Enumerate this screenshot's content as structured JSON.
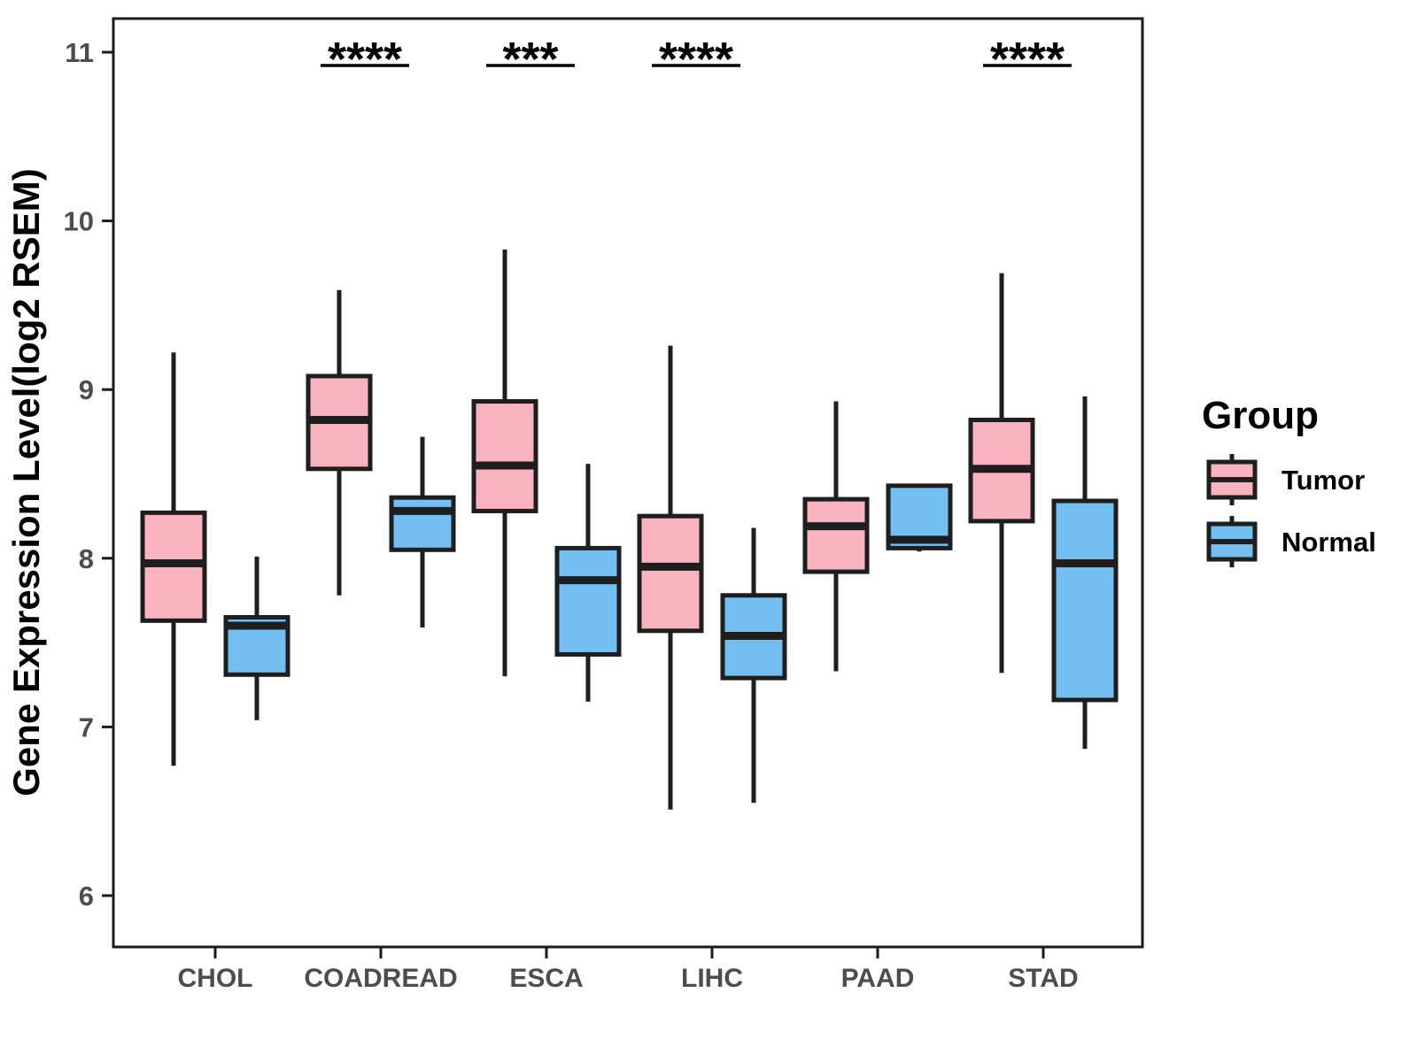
{
  "chart_data": {
    "type": "boxplot",
    "title": "",
    "xlabel": "",
    "ylabel": "Gene Expression Level(log2 RSEM)",
    "ylim": [
      5.7,
      11.2
    ],
    "yticks": [
      6,
      7,
      8,
      9,
      10,
      11
    ],
    "categories": [
      "CHOL",
      "COADREAD",
      "ESCA",
      "LIHC",
      "PAAD",
      "STAD"
    ],
    "grid": false,
    "legend_position": "right",
    "legend": {
      "title": "Group",
      "entries": [
        {
          "label": "Tumor",
          "color": "#f9b3bf"
        },
        {
          "label": "Normal",
          "color": "#73bff2"
        }
      ]
    },
    "colors": {
      "tumor_fill": "#f9b3bf",
      "normal_fill": "#73bff2",
      "box_stroke": "#1e1e1e",
      "axis_stroke": "#1a1a1a",
      "tick_label": "#4d4d4d",
      "background": "#ffffff"
    },
    "series": [
      {
        "name": "Tumor",
        "color": "#f9b3bf",
        "boxes": [
          {
            "category": "CHOL",
            "whisker_low": 6.77,
            "q1": 7.63,
            "median": 7.97,
            "q3": 8.27,
            "whisker_high": 9.22
          },
          {
            "category": "COADREAD",
            "whisker_low": 7.78,
            "q1": 8.53,
            "median": 8.82,
            "q3": 9.08,
            "whisker_high": 9.59
          },
          {
            "category": "ESCA",
            "whisker_low": 7.3,
            "q1": 8.28,
            "median": 8.55,
            "q3": 8.93,
            "whisker_high": 9.83
          },
          {
            "category": "LIHC",
            "whisker_low": 6.51,
            "q1": 7.57,
            "median": 7.95,
            "q3": 8.25,
            "whisker_high": 9.26
          },
          {
            "category": "PAAD",
            "whisker_low": 7.33,
            "q1": 7.92,
            "median": 8.19,
            "q3": 8.35,
            "whisker_high": 8.93
          },
          {
            "category": "STAD",
            "whisker_low": 7.32,
            "q1": 8.22,
            "median": 8.53,
            "q3": 8.82,
            "whisker_high": 9.69
          }
        ]
      },
      {
        "name": "Normal",
        "color": "#73bff2",
        "boxes": [
          {
            "category": "CHOL",
            "whisker_low": 7.04,
            "q1": 7.31,
            "median": 7.6,
            "q3": 7.65,
            "whisker_high": 8.01
          },
          {
            "category": "COADREAD",
            "whisker_low": 7.59,
            "q1": 8.05,
            "median": 8.28,
            "q3": 8.36,
            "whisker_high": 8.72
          },
          {
            "category": "ESCA",
            "whisker_low": 7.15,
            "q1": 7.43,
            "median": 7.87,
            "q3": 8.06,
            "whisker_high": 8.56
          },
          {
            "category": "LIHC",
            "whisker_low": 6.55,
            "q1": 7.29,
            "median": 7.54,
            "q3": 7.78,
            "whisker_high": 8.18
          },
          {
            "category": "PAAD",
            "whisker_low": 8.04,
            "q1": 8.06,
            "median": 8.11,
            "q3": 8.43,
            "whisker_high": 8.43
          },
          {
            "category": "STAD",
            "whisker_low": 6.87,
            "q1": 7.16,
            "median": 7.97,
            "q3": 8.34,
            "whisker_high": 8.96
          }
        ]
      }
    ],
    "annotations": [
      {
        "category": "COADREAD",
        "text": "****"
      },
      {
        "category": "ESCA",
        "text": "***"
      },
      {
        "category": "LIHC",
        "text": "****"
      },
      {
        "category": "STAD",
        "text": "****"
      }
    ]
  }
}
